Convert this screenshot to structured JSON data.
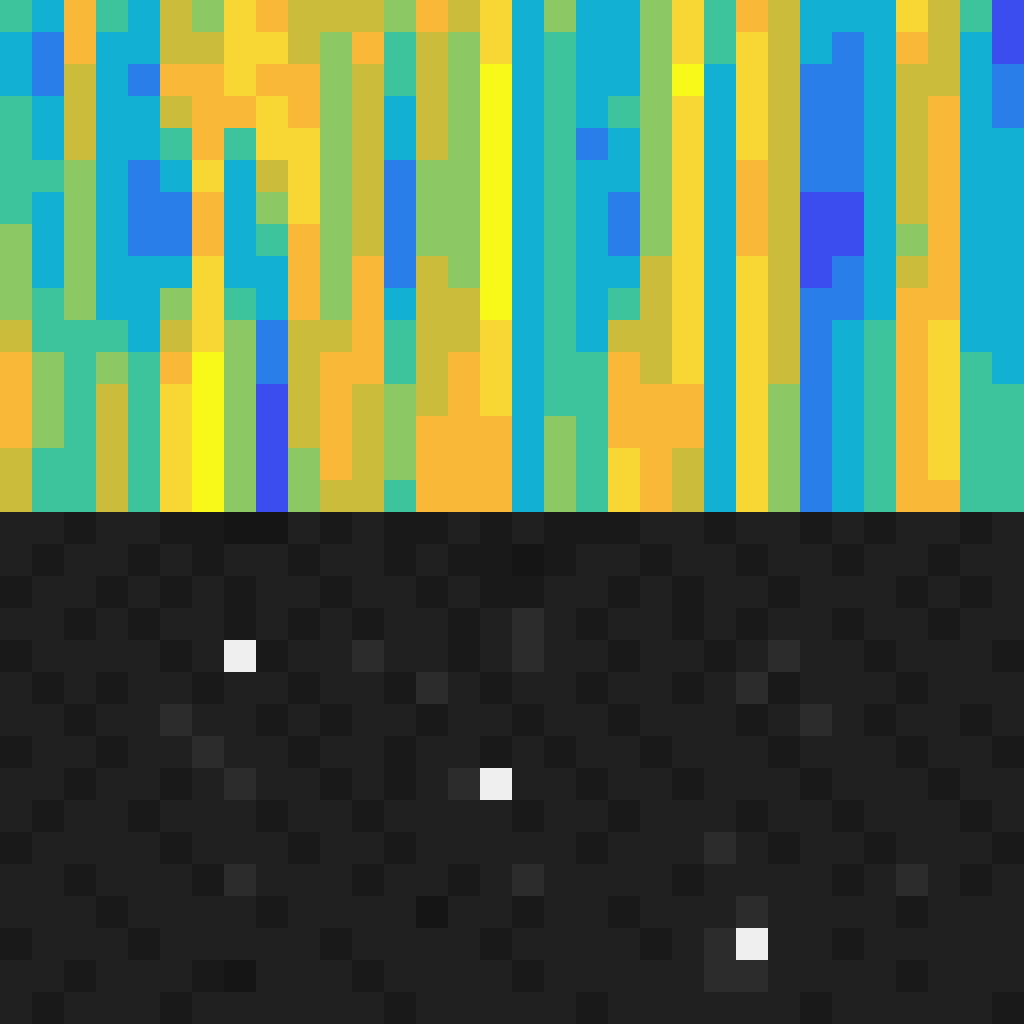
{
  "chart_data": [
    {
      "type": "heatmap",
      "color": "parula",
      "tick_labels": false,
      "color_range": [
        0,
        9
      ],
      "cells": [
        [
          4,
          3,
          7,
          4,
          3,
          6,
          5,
          8,
          7,
          6,
          6,
          6,
          5,
          7,
          6,
          8,
          3,
          5,
          3,
          3,
          5,
          8,
          4,
          7,
          6,
          3,
          3,
          3,
          8,
          6,
          4,
          1
        ],
        [
          3,
          2,
          7,
          3,
          3,
          6,
          6,
          8,
          8,
          6,
          5,
          7,
          4,
          6,
          5,
          8,
          3,
          4,
          3,
          3,
          5,
          8,
          4,
          8,
          6,
          3,
          2,
          3,
          7,
          6,
          3,
          1
        ],
        [
          3,
          2,
          6,
          3,
          2,
          7,
          7,
          8,
          7,
          7,
          5,
          6,
          4,
          6,
          5,
          9,
          3,
          4,
          3,
          3,
          5,
          9,
          3,
          8,
          6,
          2,
          2,
          3,
          6,
          6,
          3,
          2
        ],
        [
          4,
          3,
          6,
          3,
          3,
          6,
          7,
          7,
          8,
          7,
          5,
          6,
          3,
          6,
          5,
          9,
          3,
          4,
          3,
          4,
          5,
          8,
          3,
          8,
          6,
          2,
          2,
          3,
          6,
          7,
          3,
          2
        ],
        [
          4,
          3,
          6,
          3,
          3,
          4,
          7,
          4,
          8,
          8,
          5,
          6,
          3,
          6,
          5,
          9,
          3,
          4,
          2,
          3,
          5,
          8,
          3,
          8,
          6,
          2,
          2,
          3,
          6,
          7,
          3,
          3
        ],
        [
          4,
          4,
          5,
          3,
          2,
          3,
          8,
          3,
          6,
          8,
          5,
          6,
          2,
          5,
          5,
          9,
          3,
          4,
          3,
          3,
          5,
          8,
          3,
          7,
          6,
          2,
          2,
          3,
          6,
          7,
          3,
          3
        ],
        [
          4,
          3,
          5,
          3,
          2,
          2,
          7,
          3,
          5,
          8,
          5,
          6,
          2,
          5,
          5,
          9,
          3,
          4,
          3,
          2,
          5,
          8,
          3,
          7,
          6,
          1,
          1,
          3,
          6,
          7,
          3,
          3
        ],
        [
          5,
          3,
          5,
          3,
          2,
          2,
          7,
          3,
          4,
          7,
          5,
          6,
          2,
          5,
          5,
          9,
          3,
          4,
          3,
          2,
          5,
          8,
          3,
          7,
          6,
          1,
          1,
          3,
          5,
          7,
          3,
          3
        ],
        [
          5,
          3,
          5,
          3,
          3,
          3,
          8,
          3,
          3,
          7,
          5,
          7,
          2,
          6,
          5,
          9,
          3,
          4,
          3,
          3,
          6,
          8,
          3,
          8,
          6,
          1,
          2,
          3,
          6,
          7,
          3,
          3
        ],
        [
          5,
          4,
          5,
          3,
          3,
          5,
          8,
          4,
          3,
          7,
          5,
          7,
          3,
          6,
          6,
          9,
          3,
          4,
          3,
          4,
          6,
          8,
          3,
          8,
          6,
          2,
          2,
          3,
          7,
          7,
          3,
          3
        ],
        [
          6,
          4,
          4,
          4,
          3,
          6,
          8,
          5,
          2,
          6,
          6,
          7,
          4,
          6,
          6,
          8,
          3,
          4,
          3,
          6,
          6,
          8,
          3,
          8,
          6,
          2,
          3,
          4,
          7,
          8,
          3,
          3
        ],
        [
          7,
          5,
          4,
          5,
          4,
          7,
          9,
          5,
          2,
          6,
          7,
          7,
          4,
          6,
          7,
          8,
          3,
          4,
          4,
          7,
          6,
          8,
          3,
          8,
          6,
          2,
          3,
          4,
          7,
          8,
          4,
          3
        ],
        [
          7,
          5,
          4,
          6,
          4,
          8,
          9,
          5,
          1,
          6,
          7,
          6,
          5,
          6,
          7,
          8,
          3,
          4,
          4,
          7,
          7,
          7,
          3,
          8,
          5,
          2,
          3,
          4,
          7,
          8,
          4,
          4
        ],
        [
          7,
          5,
          4,
          6,
          4,
          8,
          9,
          5,
          1,
          6,
          7,
          6,
          5,
          7,
          7,
          7,
          3,
          5,
          4,
          7,
          7,
          7,
          3,
          8,
          5,
          2,
          3,
          4,
          7,
          8,
          4,
          4
        ],
        [
          6,
          4,
          4,
          6,
          4,
          8,
          9,
          5,
          1,
          5,
          7,
          6,
          5,
          7,
          7,
          7,
          3,
          5,
          4,
          8,
          7,
          6,
          3,
          8,
          5,
          2,
          3,
          4,
          7,
          8,
          4,
          4
        ],
        [
          6,
          4,
          4,
          6,
          4,
          8,
          9,
          5,
          1,
          5,
          6,
          6,
          4,
          7,
          7,
          7,
          3,
          5,
          4,
          8,
          7,
          6,
          3,
          8,
          5,
          2,
          3,
          4,
          7,
          7,
          4,
          4
        ]
      ]
    },
    {
      "type": "heatmap",
      "color": "gray",
      "tick_labels": false,
      "color_range": [
        0,
        9
      ],
      "cells": [
        [
          2,
          2,
          1,
          2,
          2,
          1,
          1,
          0,
          0,
          2,
          1,
          2,
          1,
          1,
          2,
          1,
          2,
          1,
          1,
          1,
          2,
          2,
          1,
          2,
          2,
          1,
          2,
          1,
          2,
          2,
          1,
          2
        ],
        [
          2,
          1,
          2,
          2,
          1,
          2,
          1,
          2,
          2,
          1,
          2,
          2,
          1,
          2,
          1,
          1,
          0,
          1,
          2,
          2,
          1,
          2,
          2,
          1,
          2,
          2,
          1,
          2,
          2,
          1,
          2,
          2
        ],
        [
          1,
          2,
          2,
          1,
          2,
          1,
          2,
          1,
          2,
          2,
          1,
          2,
          2,
          1,
          2,
          1,
          1,
          2,
          2,
          1,
          2,
          1,
          2,
          2,
          1,
          2,
          2,
          2,
          1,
          2,
          1,
          2
        ],
        [
          2,
          2,
          1,
          2,
          1,
          2,
          2,
          1,
          2,
          1,
          2,
          1,
          2,
          2,
          1,
          2,
          3,
          2,
          1,
          2,
          2,
          1,
          2,
          1,
          2,
          2,
          1,
          2,
          2,
          1,
          2,
          2
        ],
        [
          1,
          2,
          2,
          2,
          2,
          1,
          2,
          9,
          1,
          2,
          2,
          3,
          2,
          2,
          1,
          2,
          3,
          2,
          2,
          1,
          2,
          2,
          1,
          2,
          3,
          2,
          2,
          1,
          2,
          2,
          2,
          1
        ],
        [
          2,
          1,
          2,
          1,
          2,
          2,
          1,
          2,
          2,
          1,
          2,
          2,
          1,
          3,
          2,
          1,
          2,
          2,
          1,
          2,
          2,
          1,
          2,
          3,
          1,
          2,
          2,
          2,
          1,
          2,
          2,
          2
        ],
        [
          2,
          2,
          1,
          2,
          2,
          3,
          2,
          2,
          1,
          2,
          1,
          2,
          2,
          1,
          2,
          2,
          1,
          2,
          2,
          1,
          2,
          2,
          2,
          1,
          2,
          3,
          2,
          1,
          2,
          2,
          1,
          2
        ],
        [
          1,
          2,
          2,
          1,
          2,
          2,
          3,
          2,
          2,
          1,
          2,
          2,
          1,
          2,
          2,
          1,
          2,
          1,
          2,
          2,
          1,
          2,
          2,
          2,
          1,
          2,
          2,
          2,
          1,
          2,
          2,
          1
        ],
        [
          2,
          2,
          1,
          2,
          2,
          1,
          2,
          3,
          2,
          2,
          1,
          2,
          1,
          2,
          3,
          9,
          2,
          2,
          1,
          2,
          2,
          1,
          2,
          2,
          2,
          1,
          2,
          2,
          2,
          1,
          2,
          2
        ],
        [
          2,
          1,
          2,
          2,
          1,
          2,
          2,
          2,
          1,
          2,
          2,
          1,
          2,
          2,
          2,
          2,
          1,
          2,
          2,
          1,
          2,
          2,
          2,
          1,
          2,
          2,
          1,
          2,
          2,
          2,
          1,
          2
        ],
        [
          1,
          2,
          2,
          2,
          2,
          1,
          2,
          2,
          2,
          1,
          2,
          2,
          1,
          2,
          2,
          2,
          2,
          2,
          1,
          2,
          2,
          2,
          3,
          2,
          1,
          2,
          2,
          1,
          2,
          2,
          2,
          1
        ],
        [
          2,
          2,
          1,
          2,
          2,
          2,
          1,
          3,
          2,
          2,
          2,
          1,
          2,
          2,
          1,
          2,
          3,
          2,
          2,
          2,
          2,
          1,
          2,
          2,
          2,
          2,
          1,
          2,
          3,
          2,
          1,
          2
        ],
        [
          2,
          2,
          2,
          1,
          2,
          2,
          2,
          2,
          1,
          2,
          2,
          2,
          2,
          0,
          2,
          2,
          1,
          2,
          2,
          1,
          2,
          2,
          2,
          3,
          2,
          2,
          2,
          2,
          1,
          2,
          2,
          2
        ],
        [
          1,
          2,
          2,
          2,
          1,
          2,
          2,
          2,
          2,
          2,
          1,
          2,
          2,
          2,
          2,
          1,
          2,
          2,
          2,
          2,
          1,
          2,
          3,
          9,
          2,
          2,
          1,
          2,
          2,
          2,
          2,
          2
        ],
        [
          2,
          2,
          1,
          2,
          2,
          2,
          1,
          0,
          2,
          2,
          2,
          1,
          2,
          2,
          2,
          2,
          1,
          2,
          2,
          2,
          2,
          2,
          3,
          3,
          2,
          2,
          2,
          2,
          1,
          2,
          2,
          2
        ],
        [
          2,
          1,
          2,
          2,
          2,
          1,
          2,
          2,
          2,
          2,
          2,
          2,
          1,
          2,
          2,
          2,
          2,
          2,
          1,
          2,
          2,
          2,
          2,
          2,
          2,
          1,
          2,
          2,
          2,
          2,
          2,
          1
        ]
      ]
    }
  ]
}
